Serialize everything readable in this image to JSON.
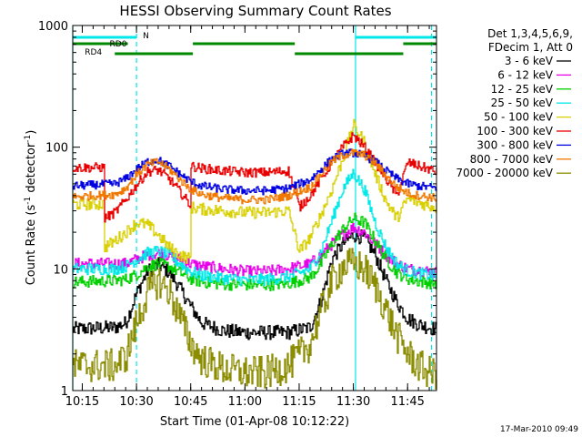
{
  "chart_data": {
    "type": "line",
    "title": "HESSI Observing Summary Count Rates",
    "xlabel": "Start Time (01-Apr-08 10:12:22)",
    "ylabel_main": "Count Rate (s",
    "ylabel_sup1": "-1",
    "ylabel_mid": " detector",
    "ylabel_sup2": "-1",
    "ylabel_end": ")",
    "footer": "17-Mar-2010 09:49",
    "xscale": "time",
    "xlim": [
      10.2061,
      11.8833
    ],
    "yscale": "log",
    "ylim": [
      1,
      1000
    ],
    "grid": false,
    "legend_placement": "right",
    "x_ticks": [
      {
        "value": 10.25,
        "label": "10:15"
      },
      {
        "value": 10.5,
        "label": "10:30"
      },
      {
        "value": 10.75,
        "label": "10:45"
      },
      {
        "value": 11.0,
        "label": "11:00"
      },
      {
        "value": 11.25,
        "label": "11:15"
      },
      {
        "value": 11.5,
        "label": "11:30"
      },
      {
        "value": 11.75,
        "label": "11:45"
      }
    ],
    "y_ticks": [
      {
        "value": 1,
        "label": "1"
      },
      {
        "value": 10,
        "label": "10"
      },
      {
        "value": 100,
        "label": "100"
      },
      {
        "value": 1000,
        "label": "1000"
      }
    ],
    "legend_header": [
      "Det 1,3,4,5,6,9,",
      "FDecim 1, Att 0"
    ],
    "series": [
      {
        "name": "3 - 6 keV",
        "color": "#000000",
        "x": [
          10.2061,
          10.4,
          10.45,
          10.5,
          10.55,
          10.6,
          10.65,
          10.7,
          10.75,
          10.8,
          10.9,
          11.0,
          11.1,
          11.2,
          11.3,
          11.35,
          11.4,
          11.45,
          11.5,
          11.55,
          11.6,
          11.65,
          11.7,
          11.75,
          11.8,
          11.85,
          11.8833
        ],
        "y": [
          3.2,
          3.3,
          3.6,
          6.3,
          9.6,
          10.8,
          9.4,
          6.9,
          4.9,
          3.6,
          3.1,
          3.0,
          3.0,
          3.0,
          3.3,
          5.5,
          12,
          16,
          19,
          18,
          13,
          8.0,
          5.3,
          3.9,
          3.5,
          3.3,
          3.2
        ]
      },
      {
        "name": "6 - 12 keV",
        "color": "#e800e8",
        "x": [
          10.2061,
          10.4,
          10.45,
          10.5,
          10.55,
          10.6,
          10.65,
          10.7,
          10.75,
          10.8,
          10.9,
          11.0,
          11.1,
          11.2,
          11.3,
          11.35,
          11.4,
          11.45,
          11.5,
          11.55,
          11.6,
          11.65,
          11.7,
          11.75,
          11.8,
          11.85,
          11.8833
        ],
        "y": [
          11,
          11,
          11,
          12,
          13,
          13.5,
          13,
          12,
          11,
          10.5,
          10,
          9.5,
          9.5,
          10,
          11,
          13,
          16,
          19,
          22,
          20,
          16,
          13,
          11,
          10,
          9.8,
          9.5,
          9.3
        ]
      },
      {
        "name": "12 - 25 keV",
        "color": "#00d000",
        "x": [
          10.2061,
          10.4,
          10.45,
          10.5,
          10.55,
          10.6,
          10.65,
          10.7,
          10.75,
          10.8,
          10.9,
          11.0,
          11.1,
          11.2,
          11.3,
          11.35,
          11.4,
          11.45,
          11.5,
          11.55,
          11.6,
          11.65,
          11.7,
          11.75,
          11.8,
          11.85,
          11.8833
        ],
        "y": [
          7.8,
          8.0,
          8.2,
          9.0,
          10.5,
          11,
          10.5,
          9.3,
          8.3,
          7.8,
          7.5,
          7.4,
          7.4,
          7.6,
          8.5,
          11,
          16,
          21,
          26,
          24,
          17,
          12,
          9.3,
          8.3,
          7.9,
          7.7,
          7.6
        ]
      },
      {
        "name": "25 - 50 keV",
        "color": "#00e8e8",
        "x": [
          10.2061,
          10.4,
          10.45,
          10.5,
          10.55,
          10.6,
          10.65,
          10.7,
          10.75,
          10.8,
          10.9,
          11.0,
          11.1,
          11.2,
          11.3,
          11.35,
          11.4,
          11.45,
          11.5,
          11.55,
          11.6,
          11.65,
          11.7,
          11.75,
          11.8,
          11.85,
          11.8833
        ],
        "y": [
          10,
          10,
          10.5,
          12,
          13.5,
          14,
          13,
          11,
          9.5,
          8.8,
          8.4,
          8.1,
          8.2,
          8.6,
          10,
          14,
          25,
          45,
          62,
          45,
          24,
          15,
          11,
          9.6,
          9.2,
          8.9,
          8.8
        ]
      },
      {
        "name": "50 - 100 keV",
        "color": "#d8d000",
        "x": [
          10.2061,
          10.35,
          10.3501,
          10.4,
          10.45,
          10.5,
          10.55,
          10.6,
          10.65,
          10.7,
          10.75,
          10.7501,
          10.8,
          10.9,
          11.0,
          11.1,
          11.2,
          11.2501,
          11.3,
          11.35,
          11.4,
          11.45,
          11.5,
          11.55,
          11.6,
          11.65,
          11.7,
          11.7501,
          11.8,
          11.85,
          11.8833
        ],
        "y": [
          34,
          34,
          15,
          17,
          20,
          24,
          23,
          19,
          15,
          13,
          12,
          32,
          31,
          30,
          29,
          29,
          30,
          14,
          18,
          28,
          45,
          80,
          152,
          110,
          60,
          36,
          26,
          38,
          35,
          33,
          32
        ]
      },
      {
        "name": "100 - 300 keV",
        "color": "#e80000",
        "x": [
          10.2061,
          10.35,
          10.3501,
          10.4,
          10.45,
          10.5,
          10.55,
          10.6,
          10.65,
          10.7,
          10.75,
          10.7501,
          10.8,
          10.9,
          11.0,
          11.1,
          11.2,
          11.2501,
          11.3,
          11.35,
          11.4,
          11.45,
          11.5,
          11.55,
          11.6,
          11.65,
          11.7,
          11.7501,
          11.8,
          11.85,
          11.8833
        ],
        "y": [
          68,
          68,
          26,
          29,
          37,
          49,
          63,
          65,
          55,
          43,
          33,
          70,
          67,
          64,
          62,
          62,
          64,
          32,
          40,
          55,
          75,
          100,
          125,
          100,
          75,
          55,
          40,
          75,
          70,
          66,
          62
        ]
      },
      {
        "name": "300 - 800 keV",
        "color": "#0000e0",
        "x": [
          10.2061,
          10.4,
          10.45,
          10.5,
          10.55,
          10.6,
          10.65,
          10.7,
          10.75,
          10.8,
          10.9,
          11.0,
          11.1,
          11.2,
          11.3,
          11.35,
          11.4,
          11.45,
          11.5,
          11.55,
          11.6,
          11.65,
          11.7,
          11.75,
          11.8,
          11.85,
          11.8833
        ],
        "y": [
          48,
          50,
          55,
          66,
          76,
          78,
          70,
          60,
          52,
          48,
          45,
          44,
          44,
          46,
          54,
          66,
          80,
          88,
          90,
          85,
          76,
          64,
          55,
          50,
          48,
          47,
          46
        ]
      },
      {
        "name": "800 - 7000 keV",
        "color": "#f07800",
        "x": [
          10.2061,
          10.4,
          10.45,
          10.5,
          10.55,
          10.6,
          10.65,
          10.7,
          10.75,
          10.8,
          10.9,
          11.0,
          11.1,
          11.2,
          11.3,
          11.35,
          11.4,
          11.45,
          11.5,
          11.55,
          11.6,
          11.65,
          11.7,
          11.75,
          11.8,
          11.85,
          11.8833
        ],
        "y": [
          39,
          41,
          46,
          60,
          72,
          76,
          66,
          54,
          45,
          41,
          38,
          37,
          37,
          40,
          47,
          60,
          76,
          86,
          90,
          86,
          74,
          58,
          47,
          42,
          40,
          39,
          38
        ]
      },
      {
        "name": "7000 - 20000 keV",
        "color": "#8c8c00",
        "x": [
          10.2061,
          10.4,
          10.45,
          10.5,
          10.55,
          10.6,
          10.65,
          10.7,
          10.75,
          10.8,
          10.9,
          11.0,
          11.1,
          11.2,
          11.3,
          11.35,
          11.4,
          11.45,
          11.5,
          11.55,
          11.6,
          11.65,
          11.7,
          11.75,
          11.8,
          11.85,
          11.8833
        ],
        "y": [
          1.6,
          1.6,
          1.9,
          3.6,
          6.4,
          8.0,
          6.5,
          4.0,
          2.4,
          1.8,
          1.5,
          1.4,
          1.4,
          1.6,
          2.4,
          4.5,
          7.8,
          10.5,
          11,
          10,
          7.2,
          4.6,
          2.8,
          2.0,
          1.6,
          1.4,
          1.4
        ]
      }
    ],
    "state_bars": [
      {
        "label": "N",
        "color": "#00e8e8",
        "row": "top",
        "intervals": [
          [
            10.2061,
            10.5
          ],
          [
            11.51,
            11.8833
          ]
        ]
      },
      {
        "label": "RD0",
        "color": "#008800",
        "row": "middle",
        "intervals": [
          [
            10.2061,
            10.46
          ],
          [
            10.76,
            11.23
          ],
          [
            11.73,
            11.8833
          ]
        ]
      },
      {
        "label": "RD4",
        "color": "#008800",
        "row": "bottom",
        "intervals": [
          [
            10.4,
            10.76
          ],
          [
            11.23,
            11.73
          ]
        ]
      }
    ],
    "vertical_markers": [
      {
        "x": 10.2061,
        "style": "solid",
        "color": "#00e8e8"
      },
      {
        "x": 10.5,
        "style": "dashed",
        "color": "#00e8e8"
      },
      {
        "x": 11.51,
        "style": "solid",
        "color": "#00e8e8"
      },
      {
        "x": 11.86,
        "style": "dashed",
        "color": "#00e8e8"
      }
    ]
  }
}
